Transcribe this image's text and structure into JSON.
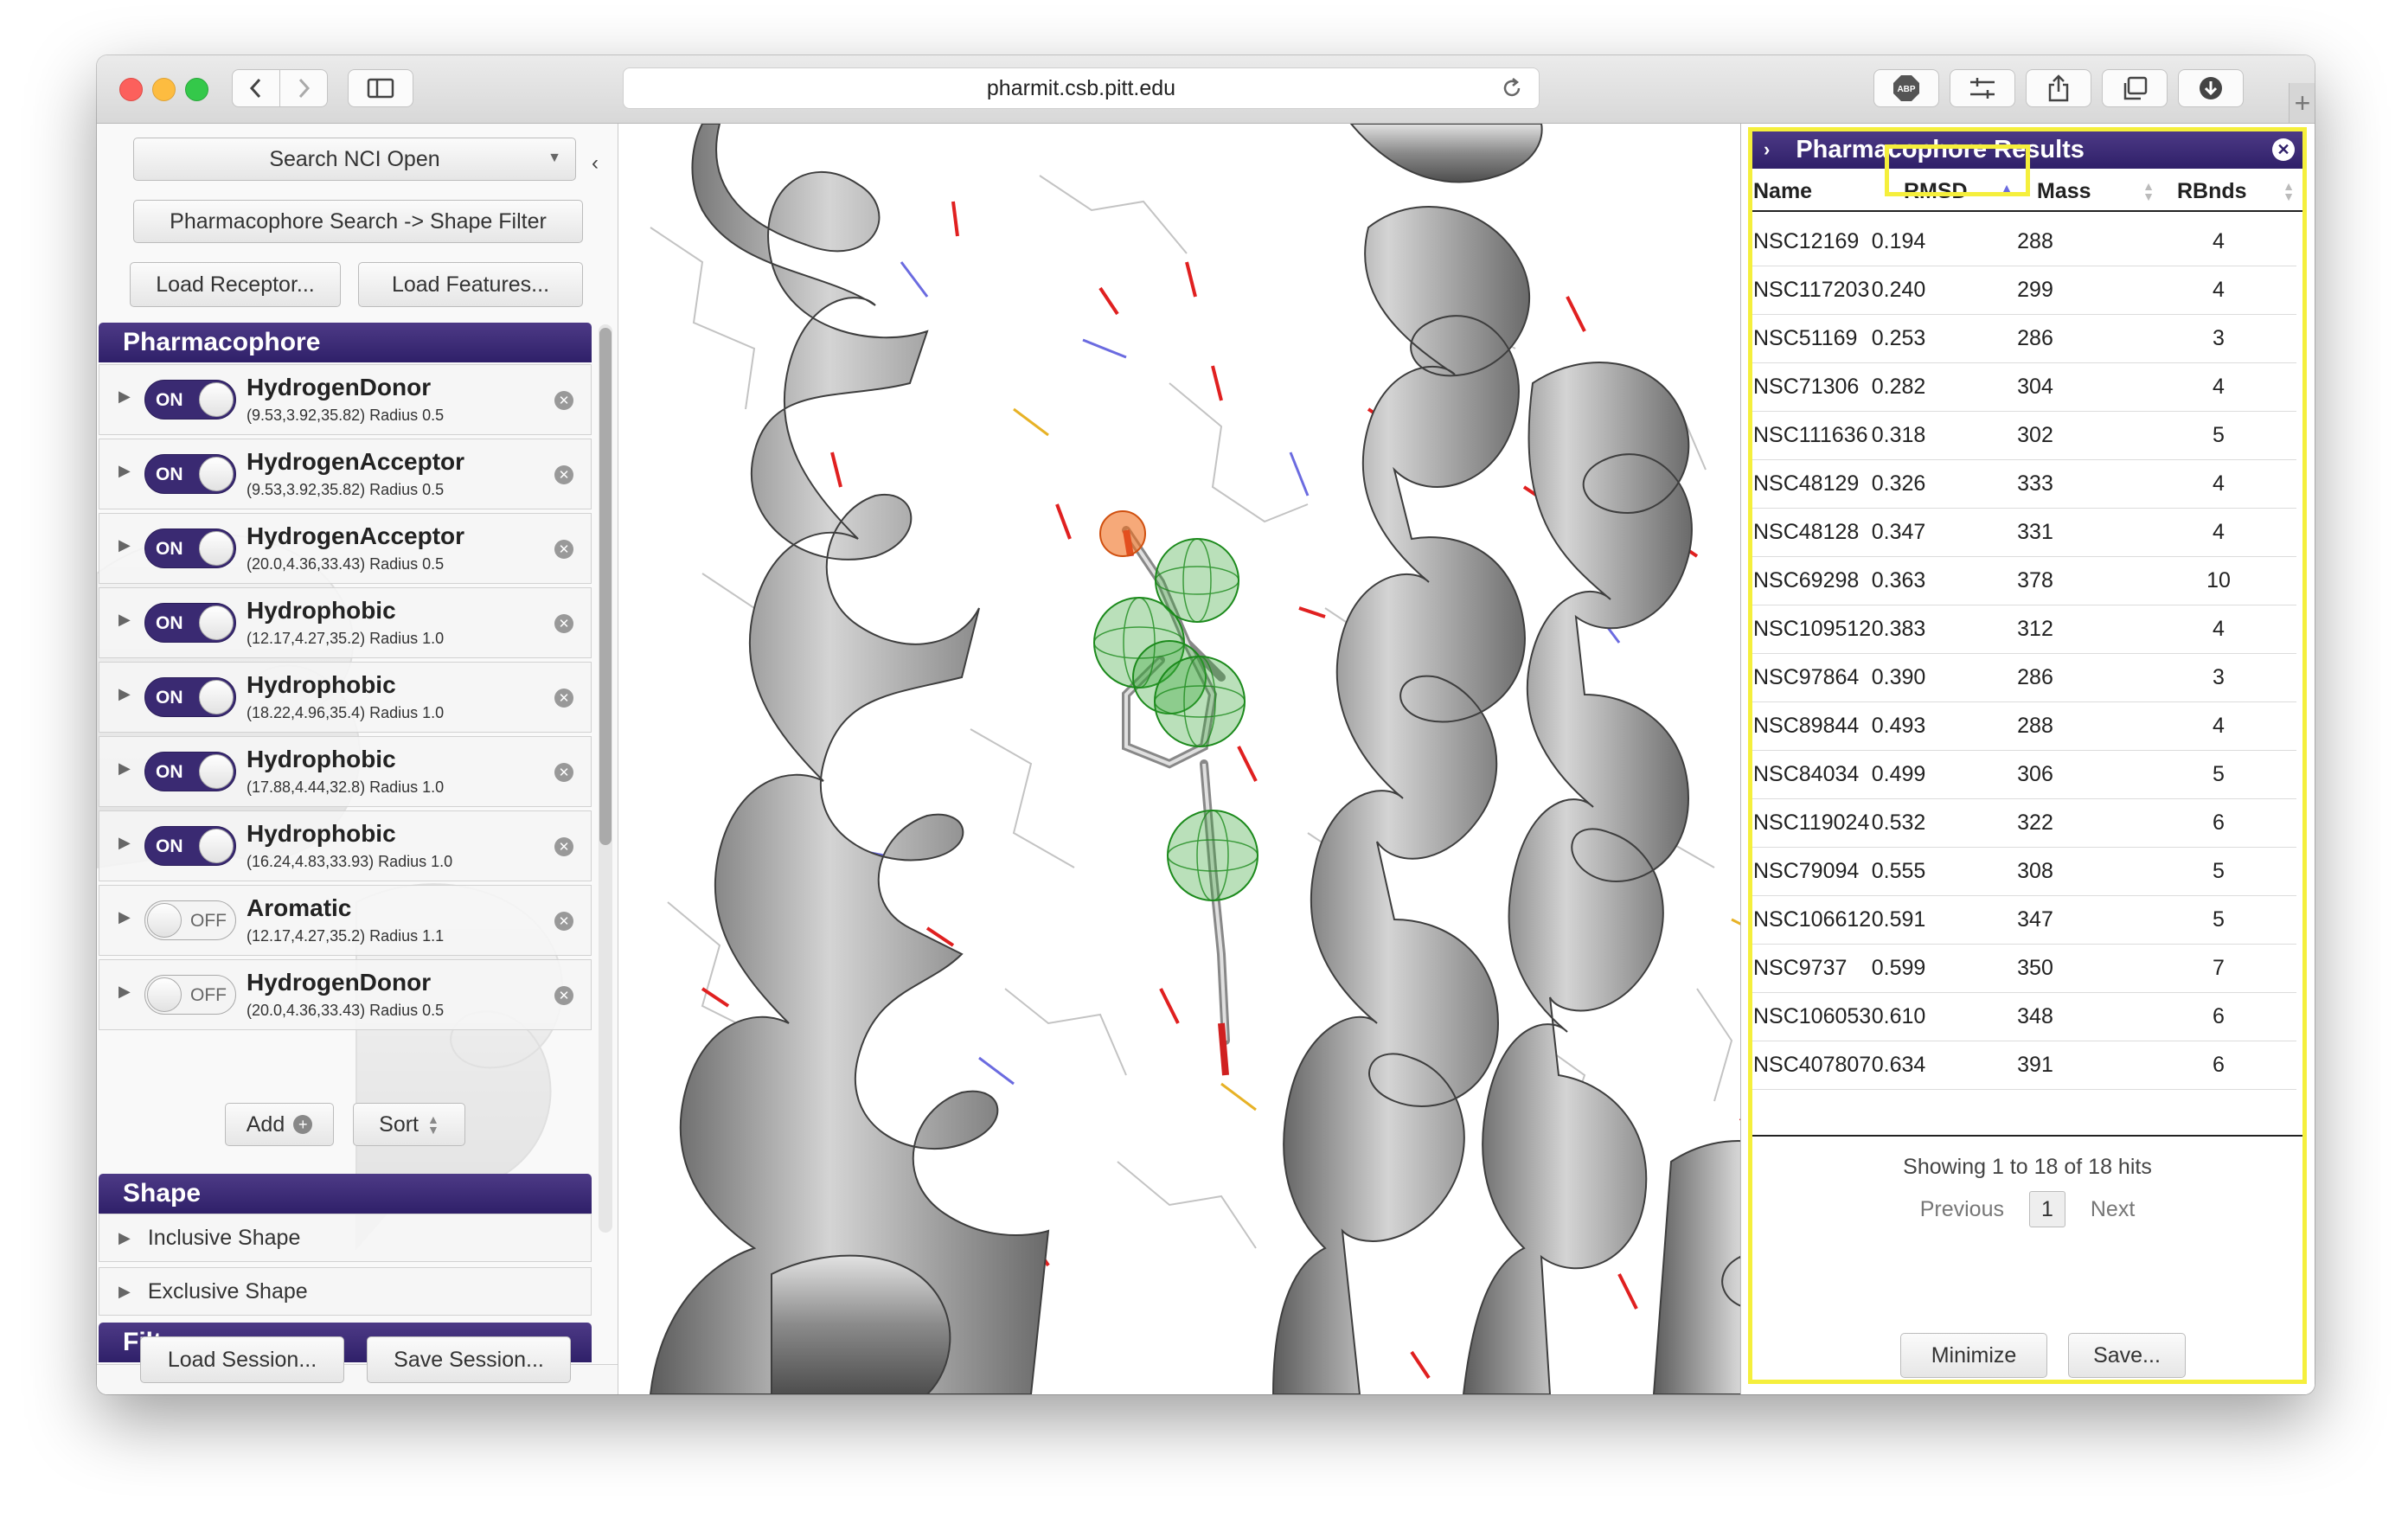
{
  "browser": {
    "url": "pharmit.csb.pitt.edu"
  },
  "search": {
    "database_label": "Search NCI Open",
    "mode_label": "Pharmacophore Search -> Shape Filter",
    "load_receptor_label": "Load Receptor...",
    "load_features_label": "Load Features..."
  },
  "pharmacophore": {
    "title": "Pharmacophore",
    "features": [
      {
        "state": "ON",
        "name": "HydrogenDonor",
        "coords": "(9.53,3.92,35.82) Radius 0.5"
      },
      {
        "state": "ON",
        "name": "HydrogenAcceptor",
        "coords": "(9.53,3.92,35.82) Radius 0.5"
      },
      {
        "state": "ON",
        "name": "HydrogenAcceptor",
        "coords": "(20.0,4.36,33.43) Radius 0.5"
      },
      {
        "state": "ON",
        "name": "Hydrophobic",
        "coords": "(12.17,4.27,35.2) Radius 1.0"
      },
      {
        "state": "ON",
        "name": "Hydrophobic",
        "coords": "(18.22,4.96,35.4) Radius 1.0"
      },
      {
        "state": "ON",
        "name": "Hydrophobic",
        "coords": "(17.88,4.44,32.8) Radius 1.0"
      },
      {
        "state": "ON",
        "name": "Hydrophobic",
        "coords": "(16.24,4.83,33.93) Radius 1.0"
      },
      {
        "state": "OFF",
        "name": "Aromatic",
        "coords": "(12.17,4.27,35.2) Radius 1.1"
      },
      {
        "state": "OFF",
        "name": "HydrogenDonor",
        "coords": "(20.0,4.36,33.43) Radius 0.5"
      }
    ],
    "add_label": "Add",
    "sort_label": "Sort"
  },
  "shape": {
    "title": "Shape",
    "inclusive_label": "Inclusive Shape",
    "exclusive_label": "Exclusive Shape"
  },
  "filters": {
    "title": "Filters"
  },
  "session": {
    "load_label": "Load Session...",
    "save_label": "Save Session..."
  },
  "results": {
    "title": "Pharmacophore Results",
    "columns": [
      "Name",
      "RMSD",
      "Mass",
      "RBnds"
    ],
    "rows": [
      [
        "NSC12169",
        "0.194",
        "288",
        "4"
      ],
      [
        "NSC117203",
        "0.240",
        "299",
        "4"
      ],
      [
        "NSC51169",
        "0.253",
        "286",
        "3"
      ],
      [
        "NSC71306",
        "0.282",
        "304",
        "4"
      ],
      [
        "NSC111636",
        "0.318",
        "302",
        "5"
      ],
      [
        "NSC48129",
        "0.326",
        "333",
        "4"
      ],
      [
        "NSC48128",
        "0.347",
        "331",
        "4"
      ],
      [
        "NSC69298",
        "0.363",
        "378",
        "10"
      ],
      [
        "NSC109512",
        "0.383",
        "312",
        "4"
      ],
      [
        "NSC97864",
        "0.390",
        "286",
        "3"
      ],
      [
        "NSC89844",
        "0.493",
        "288",
        "4"
      ],
      [
        "NSC84034",
        "0.499",
        "306",
        "5"
      ],
      [
        "NSC119024",
        "0.532",
        "322",
        "6"
      ],
      [
        "NSC79094",
        "0.555",
        "308",
        "5"
      ],
      [
        "NSC106612",
        "0.591",
        "347",
        "5"
      ],
      [
        "NSC9737",
        "0.599",
        "350",
        "7"
      ],
      [
        "NSC106053",
        "0.610",
        "348",
        "6"
      ],
      [
        "NSC407807",
        "0.634",
        "391",
        "6"
      ]
    ],
    "showing_text": "Showing 1 to 18 of 18 hits",
    "previous_label": "Previous",
    "page": "1",
    "next_label": "Next",
    "minimize_label": "Minimize",
    "save_label": "Save..."
  }
}
